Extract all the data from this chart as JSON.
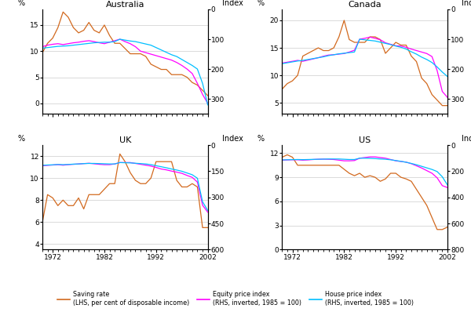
{
  "years": [
    1970,
    1971,
    1972,
    1973,
    1974,
    1975,
    1976,
    1977,
    1978,
    1979,
    1980,
    1981,
    1982,
    1983,
    1984,
    1985,
    1986,
    1987,
    1988,
    1989,
    1990,
    1991,
    1992,
    1993,
    1994,
    1995,
    1996,
    1997,
    1998,
    1999,
    2000,
    2001,
    2002
  ],
  "australia": {
    "saving": [
      9.7,
      11.5,
      12.5,
      14.5,
      17.5,
      16.5,
      14.5,
      13.5,
      14.0,
      15.5,
      14.0,
      13.5,
      15.0,
      13.0,
      11.5,
      11.5,
      10.5,
      9.5,
      9.5,
      9.5,
      9.0,
      7.5,
      7.0,
      6.5,
      6.5,
      5.5,
      5.5,
      5.5,
      5.0,
      4.0,
      3.5,
      2.5,
      1.5
    ],
    "equity": [
      125,
      120,
      117,
      115,
      118,
      115,
      112,
      110,
      107,
      105,
      108,
      112,
      115,
      110,
      105,
      100,
      108,
      115,
      125,
      140,
      145,
      150,
      155,
      160,
      165,
      170,
      178,
      188,
      200,
      215,
      248,
      285,
      315
    ],
    "house": [
      130,
      128,
      126,
      124,
      123,
      122,
      120,
      118,
      116,
      114,
      112,
      111,
      110,
      110,
      108,
      100,
      103,
      106,
      108,
      112,
      116,
      120,
      128,
      136,
      144,
      152,
      158,
      168,
      178,
      188,
      200,
      248,
      320
    ]
  },
  "canada": {
    "saving": [
      7.5,
      8.5,
      9.0,
      10.0,
      13.5,
      14.0,
      14.5,
      15.0,
      14.5,
      14.5,
      15.0,
      17.0,
      20.0,
      16.5,
      16.0,
      16.0,
      16.0,
      17.0,
      17.0,
      16.5,
      14.0,
      15.0,
      16.0,
      15.5,
      15.5,
      13.5,
      12.5,
      9.5,
      8.5,
      6.5,
      5.5,
      4.5,
      4.5
    ],
    "equity": [
      180,
      177,
      174,
      171,
      174,
      170,
      166,
      162,
      157,
      153,
      152,
      150,
      148,
      143,
      137,
      100,
      97,
      93,
      97,
      102,
      112,
      117,
      122,
      123,
      127,
      133,
      138,
      143,
      148,
      158,
      205,
      275,
      295
    ],
    "house": [
      182,
      179,
      176,
      173,
      171,
      168,
      165,
      162,
      159,
      155,
      152,
      149,
      147,
      145,
      143,
      100,
      102,
      104,
      106,
      110,
      114,
      118,
      123,
      127,
      133,
      142,
      150,
      160,
      168,
      178,
      193,
      210,
      225
    ]
  },
  "uk": {
    "saving": [
      6.0,
      8.5,
      8.2,
      7.5,
      8.0,
      7.5,
      7.5,
      8.2,
      7.2,
      8.5,
      8.5,
      8.5,
      9.0,
      9.5,
      9.5,
      12.2,
      11.5,
      10.5,
      9.8,
      9.5,
      9.5,
      10.0,
      11.5,
      11.5,
      11.5,
      11.5,
      9.8,
      9.2,
      9.2,
      9.5,
      9.2,
      5.5,
      5.5
    ],
    "equity": [
      118,
      116,
      114,
      112,
      115,
      112,
      110,
      108,
      106,
      104,
      107,
      110,
      112,
      112,
      108,
      100,
      100,
      100,
      105,
      110,
      115,
      120,
      128,
      137,
      142,
      149,
      155,
      162,
      174,
      185,
      212,
      345,
      385
    ],
    "house": [
      116,
      114,
      113,
      111,
      112,
      111,
      109,
      108,
      106,
      105,
      105,
      106,
      107,
      108,
      108,
      100,
      101,
      102,
      104,
      106,
      108,
      112,
      118,
      124,
      130,
      137,
      143,
      150,
      160,
      170,
      190,
      325,
      375
    ]
  },
  "us": {
    "saving": [
      11.5,
      11.8,
      11.5,
      10.5,
      10.5,
      10.5,
      10.5,
      10.5,
      10.5,
      10.5,
      10.5,
      10.5,
      10.0,
      9.5,
      9.2,
      9.5,
      9.0,
      9.2,
      9.0,
      8.5,
      8.8,
      9.5,
      9.5,
      9.0,
      8.8,
      8.5,
      7.5,
      6.5,
      5.5,
      4.0,
      2.5,
      2.5,
      2.8
    ],
    "equity": [
      115,
      113,
      112,
      112,
      115,
      113,
      110,
      108,
      107,
      108,
      110,
      115,
      120,
      120,
      118,
      100,
      95,
      90,
      90,
      95,
      100,
      110,
      120,
      125,
      130,
      142,
      158,
      175,
      195,
      215,
      250,
      310,
      325
    ],
    "house": [
      113,
      112,
      111,
      110,
      111,
      110,
      109,
      108,
      107,
      106,
      106,
      106,
      108,
      110,
      110,
      100,
      100,
      101,
      103,
      106,
      108,
      112,
      118,
      124,
      131,
      140,
      150,
      162,
      174,
      186,
      202,
      242,
      305
    ]
  },
  "colors": {
    "saving": "#D2691E",
    "equity": "#FF00FF",
    "house": "#00BFFF"
  },
  "panels": [
    {
      "title": "Australia",
      "lhs_ylim": [
        -2,
        18
      ],
      "lhs_ticks": [
        0,
        5,
        10,
        15
      ],
      "rhs_max": 350,
      "rhs_ticks": [
        0,
        100,
        200,
        300
      ],
      "show_xticks": false
    },
    {
      "title": "Canada",
      "lhs_ylim": [
        3,
        22
      ],
      "lhs_ticks": [
        5,
        10,
        15,
        20
      ],
      "rhs_max": 350,
      "rhs_ticks": [
        0,
        100,
        200,
        300
      ],
      "show_xticks": false
    },
    {
      "title": "UK",
      "lhs_ylim": [
        3.5,
        13
      ],
      "lhs_ticks": [
        4,
        6,
        8,
        10,
        12
      ],
      "rhs_max": 600,
      "rhs_ticks": [
        0,
        150,
        300,
        450,
        600
      ],
      "show_xticks": true
    },
    {
      "title": "US",
      "lhs_ylim": [
        0,
        13
      ],
      "lhs_ticks": [
        0,
        3,
        6,
        9,
        12
      ],
      "rhs_max": 800,
      "rhs_ticks": [
        0,
        200,
        400,
        600,
        800
      ],
      "show_xticks": true
    }
  ]
}
